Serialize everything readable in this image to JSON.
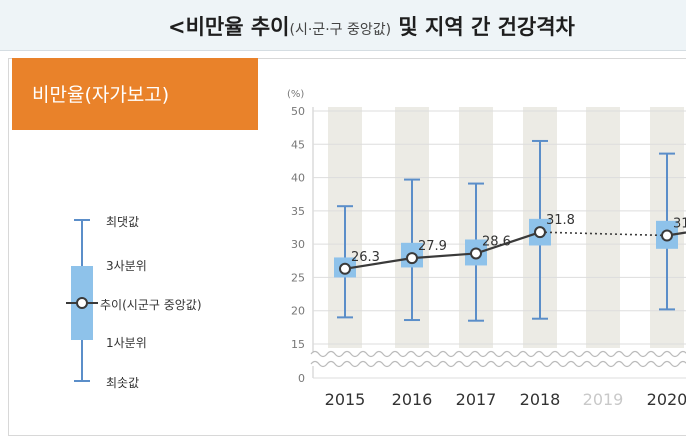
{
  "header": {
    "title_main": "<비만율 추이",
    "title_sub": "(시·군·구 중앙값)",
    "title_rest": " 및 지역 간 건강격차"
  },
  "panel": {
    "label": "비만율(자가보고)"
  },
  "legend": {
    "max": "최댓값",
    "q3": "3사분위",
    "median": "추이(시군구 중앙값)",
    "q1": "1사분위",
    "min": "최솟값"
  },
  "colors": {
    "accent": "#e9822a",
    "box": "#8ec2ea",
    "whisker": "#5b8ec9",
    "line": "#3a3a3a",
    "band": "#ecebe5"
  },
  "chart_data": {
    "type": "box",
    "y_unit": "(%)",
    "ylim": [
      0,
      50
    ],
    "y_ticks": [
      0,
      15,
      20,
      25,
      30,
      35,
      40,
      45,
      50
    ],
    "axis_break": [
      0,
      15
    ],
    "categories": [
      "2015",
      "2016",
      "2017",
      "2018",
      "2019",
      "2020"
    ],
    "series": [
      {
        "median": [
          26.3,
          27.9,
          28.6,
          31.8,
          null,
          31.3
        ],
        "labels": [
          "26.3",
          "27.9",
          "28.6",
          "31.8",
          "",
          "31"
        ],
        "q1": [
          25.0,
          26.5,
          26.8,
          29.8,
          null,
          29.3
        ],
        "q3": [
          28.0,
          30.2,
          30.7,
          33.8,
          null,
          33.5
        ],
        "min": [
          19.0,
          18.6,
          18.5,
          18.8,
          null,
          20.2
        ],
        "max": [
          35.7,
          39.7,
          39.1,
          45.5,
          null,
          43.6
        ]
      }
    ],
    "missing_categories": [
      "2019"
    ],
    "dotted_segment": [
      "2018",
      "2020"
    ]
  }
}
